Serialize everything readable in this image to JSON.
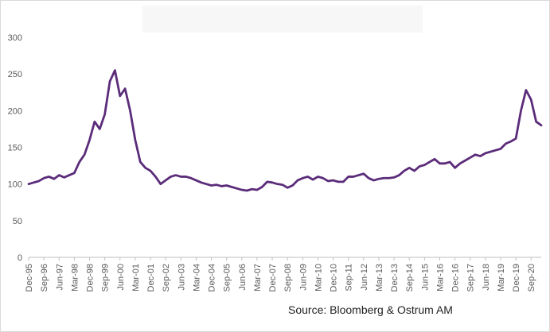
{
  "chart_data": {
    "type": "line",
    "title": "",
    "xlabel": "",
    "ylabel": "",
    "ylim": [
      0,
      300
    ],
    "yticks": [
      0,
      50,
      100,
      150,
      200,
      250,
      300
    ],
    "grid": false,
    "legend": "none",
    "line_color": "#5b2c7a",
    "source": "Source: Bloomberg & Ostrum AM",
    "x_tick_labels": [
      "Dec-95",
      "Sep-96",
      "Jun-97",
      "Mar-98",
      "Dec-98",
      "Sep-99",
      "Jun-00",
      "Mar-01",
      "Dec-01",
      "Sep-02",
      "Jun-03",
      "Mar-04",
      "Dec-04",
      "Sep-05",
      "Jun-06",
      "Mar-07",
      "Dec-07",
      "Sep-08",
      "Jun-09",
      "Mar-10",
      "Dec-10",
      "Sep-11",
      "Jun-12",
      "Mar-13",
      "Dec-13",
      "Sep-14",
      "Jun-15",
      "Mar-16",
      "Dec-16",
      "Sep-17",
      "Jun-18",
      "Mar-19",
      "Dec-19",
      "Sep-20"
    ],
    "series": [
      {
        "x": [
          "Dec-95",
          "Mar-96",
          "Jun-96",
          "Sep-96",
          "Dec-96",
          "Mar-97",
          "Jun-97",
          "Sep-97",
          "Dec-97",
          "Mar-98",
          "Jun-98",
          "Sep-98",
          "Dec-98",
          "Mar-99",
          "Jun-99",
          "Sep-99",
          "Dec-99",
          "Mar-00",
          "Jun-00",
          "Sep-00",
          "Dec-00",
          "Mar-01",
          "Jun-01",
          "Sep-01",
          "Dec-01",
          "Mar-02",
          "Jun-02",
          "Sep-02",
          "Dec-02",
          "Mar-03",
          "Jun-03",
          "Sep-03",
          "Dec-03",
          "Mar-04",
          "Jun-04",
          "Sep-04",
          "Dec-04",
          "Mar-05",
          "Jun-05",
          "Sep-05",
          "Dec-05",
          "Mar-06",
          "Jun-06",
          "Sep-06",
          "Dec-06",
          "Mar-07",
          "Jun-07",
          "Sep-07",
          "Dec-07",
          "Mar-08",
          "Jun-08",
          "Sep-08",
          "Dec-08",
          "Mar-09",
          "Jun-09",
          "Sep-09",
          "Dec-09",
          "Mar-10",
          "Jun-10",
          "Sep-10",
          "Dec-10",
          "Mar-11",
          "Jun-11",
          "Sep-11",
          "Dec-11",
          "Mar-12",
          "Jun-12",
          "Sep-12",
          "Dec-12",
          "Mar-13",
          "Jun-13",
          "Sep-13",
          "Dec-13",
          "Mar-14",
          "Jun-14",
          "Sep-14",
          "Dec-14",
          "Mar-15",
          "Jun-15",
          "Sep-15",
          "Dec-15",
          "Mar-16",
          "Jun-16",
          "Sep-16",
          "Dec-16",
          "Mar-17",
          "Jun-17",
          "Sep-17",
          "Dec-17",
          "Mar-18",
          "Jun-18",
          "Sep-18",
          "Dec-18",
          "Mar-19",
          "Jun-19",
          "Sep-19",
          "Dec-19",
          "Mar-20",
          "Jun-20",
          "Sep-20",
          "Dec-20",
          "Mar-21"
        ],
        "values": [
          100,
          102,
          104,
          108,
          110,
          107,
          112,
          109,
          112,
          115,
          130,
          140,
          160,
          185,
          175,
          195,
          240,
          255,
          220,
          230,
          200,
          160,
          130,
          122,
          118,
          110,
          100,
          105,
          110,
          112,
          110,
          110,
          108,
          105,
          102,
          100,
          98,
          99,
          97,
          98,
          96,
          94,
          92,
          91,
          93,
          92,
          96,
          103,
          102,
          100,
          99,
          95,
          98,
          105,
          108,
          110,
          106,
          110,
          108,
          104,
          105,
          103,
          103,
          110,
          110,
          112,
          114,
          108,
          105,
          107,
          108,
          108,
          109,
          112,
          118,
          122,
          118,
          124,
          126,
          130,
          134,
          128,
          128,
          130,
          122,
          128,
          132,
          136,
          140,
          138,
          142,
          144,
          146,
          148,
          155,
          158,
          162,
          200,
          228,
          215,
          185,
          180
        ]
      }
    ]
  }
}
